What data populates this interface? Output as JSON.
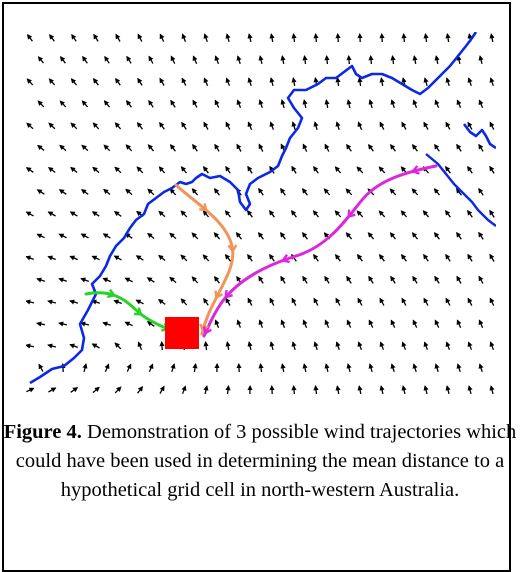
{
  "figure": {
    "label": "Figure 4.",
    "caption": "Demonstration of 3 possible wind trajectories which could have been used in determining the mean distance to a hypothetical grid cell in north-western Australia."
  },
  "colors": {
    "coastline": "#0a28e6",
    "arrows": "#000000",
    "trajectory_orange": "#f0945a",
    "trajectory_green": "#28d228",
    "trajectory_magenta": "#dc28dc",
    "grid_cell": "#ff0000"
  },
  "map_layers": {
    "wind_field": "black wind direction arrows",
    "coastline": "north-western Australia coastline",
    "trajectories": [
      "green",
      "orange",
      "magenta"
    ],
    "target": "hypothetical grid cell"
  }
}
